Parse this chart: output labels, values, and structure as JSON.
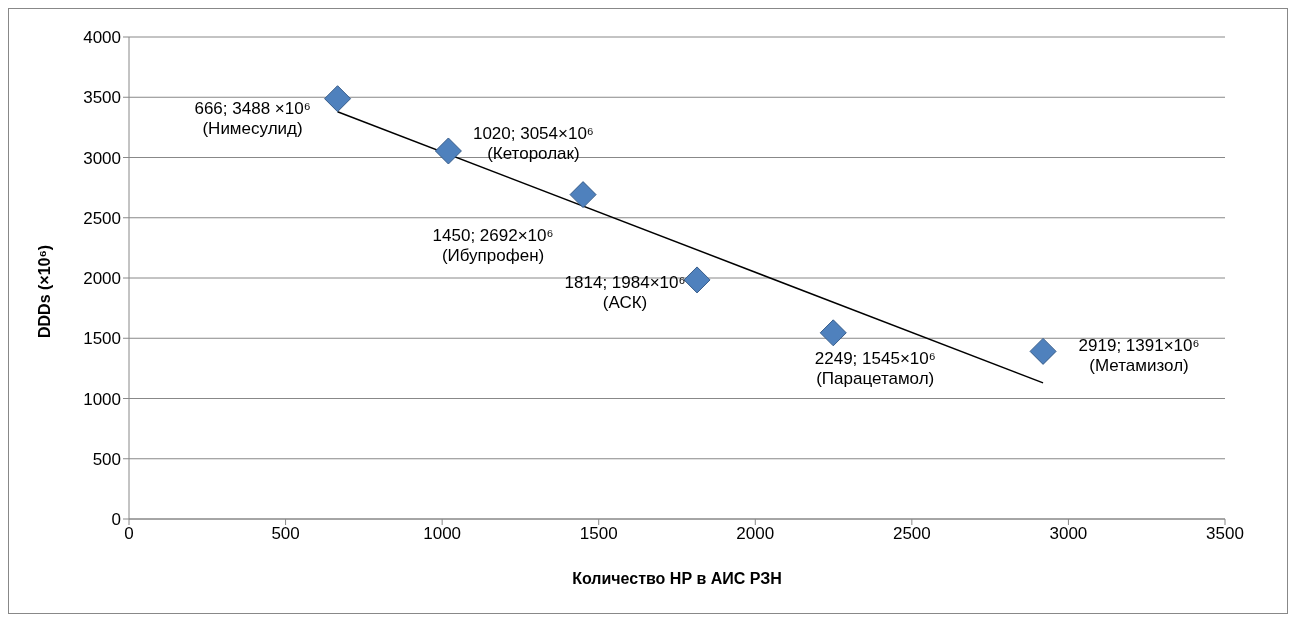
{
  "chart_data": {
    "type": "scatter",
    "xlabel": "Количество НР в АИС РЗН",
    "ylabel": "DDDs  (×10⁶)",
    "xlim": [
      0,
      3500
    ],
    "xticks": [
      0,
      500,
      1000,
      1500,
      2000,
      2500,
      3000,
      3500
    ],
    "ylim": [
      0,
      4000
    ],
    "yticks": [
      0,
      500,
      1000,
      1500,
      2000,
      2500,
      3000,
      3500,
      4000
    ],
    "grid": "y",
    "legend": false,
    "series": [
      {
        "color": "#4f81bd",
        "marker": "diamond",
        "x": [
          666,
          1020,
          1450,
          1814,
          2249,
          2919
        ],
        "values": [
          3488,
          3054,
          2692,
          1984,
          1545,
          1391
        ],
        "value_labels": [
          "666; 3488 ×10⁶\n(Нимесулид)",
          "1020; 3054×10⁶\n(Кеторолак)",
          "1450; 2692×10⁶\n(Ибупрофен)",
          "1814; 1984×10⁶\n(АСК)",
          "2249; 1545×10⁶\n(Парацетамол)",
          "2919; 1391×10⁶\n(Метамизол)"
        ]
      },
      {
        "type": "line",
        "color": "#000000",
        "x": [
          666,
          2919
        ],
        "values": [
          3380,
          1130
        ]
      }
    ]
  }
}
